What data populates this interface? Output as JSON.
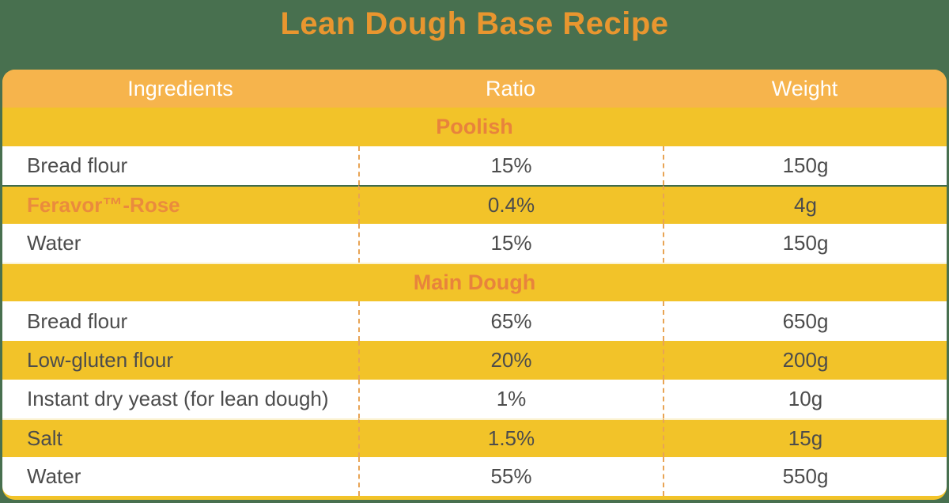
{
  "title": "Lean Dough Base Recipe",
  "colors": {
    "background_green": "#48704F",
    "header_bg_orange": "#F6B44C",
    "row_yellow": "#F2C329",
    "row_white": "#FFFFFF",
    "title_orange": "#E9962F",
    "section_text_orange": "#E8833C",
    "brand_text_orange": "#EA8B3D",
    "body_text_gray": "#4C4C4C",
    "column_divider_dashed": "#E8A455"
  },
  "table": {
    "columns": [
      "Ingredients",
      "Ratio",
      "Weight"
    ],
    "sections": [
      {
        "name": "Poolish",
        "rows": [
          {
            "ingredient": "Bread flour",
            "ratio": "15%",
            "weight": "150g"
          },
          {
            "ingredient": "Feravor™-Rose",
            "ratio": "0.4%",
            "weight": "4g"
          },
          {
            "ingredient": "Water",
            "ratio": "15%",
            "weight": "150g"
          }
        ]
      },
      {
        "name": "Main Dough",
        "rows": [
          {
            "ingredient": "Bread flour",
            "ratio": "65%",
            "weight": "650g"
          },
          {
            "ingredient": "Low-gluten flour",
            "ratio": "20%",
            "weight": "200g"
          },
          {
            "ingredient": "Instant dry yeast (for lean dough)",
            "ratio": "1%",
            "weight": "10g"
          },
          {
            "ingredient": "Salt",
            "ratio": "1.5%",
            "weight": "15g"
          },
          {
            "ingredient": "Water",
            "ratio": "55%",
            "weight": "550g"
          }
        ]
      }
    ]
  },
  "chart_data": {
    "type": "table",
    "title": "Lean Dough Base Recipe",
    "columns": [
      "Ingredients",
      "Ratio",
      "Weight"
    ],
    "sections": [
      {
        "name": "Poolish",
        "rows": [
          [
            "Bread flour",
            "15%",
            "150g"
          ],
          [
            "Feravor™-Rose",
            "0.4%",
            "4g"
          ],
          [
            "Water",
            "15%",
            "150g"
          ]
        ]
      },
      {
        "name": "Main Dough",
        "rows": [
          [
            "Bread flour",
            "65%",
            "650g"
          ],
          [
            "Low-gluten flour",
            "20%",
            "200g"
          ],
          [
            "Instant dry yeast (for lean dough)",
            "1%",
            "10g"
          ],
          [
            "Salt",
            "1.5%",
            "15g"
          ],
          [
            "Water",
            "55%",
            "550g"
          ]
        ]
      }
    ],
    "layout": "header row + two section header rows spanning all columns; alternating white/yellow data rows; dashed column dividers on data rows only"
  }
}
